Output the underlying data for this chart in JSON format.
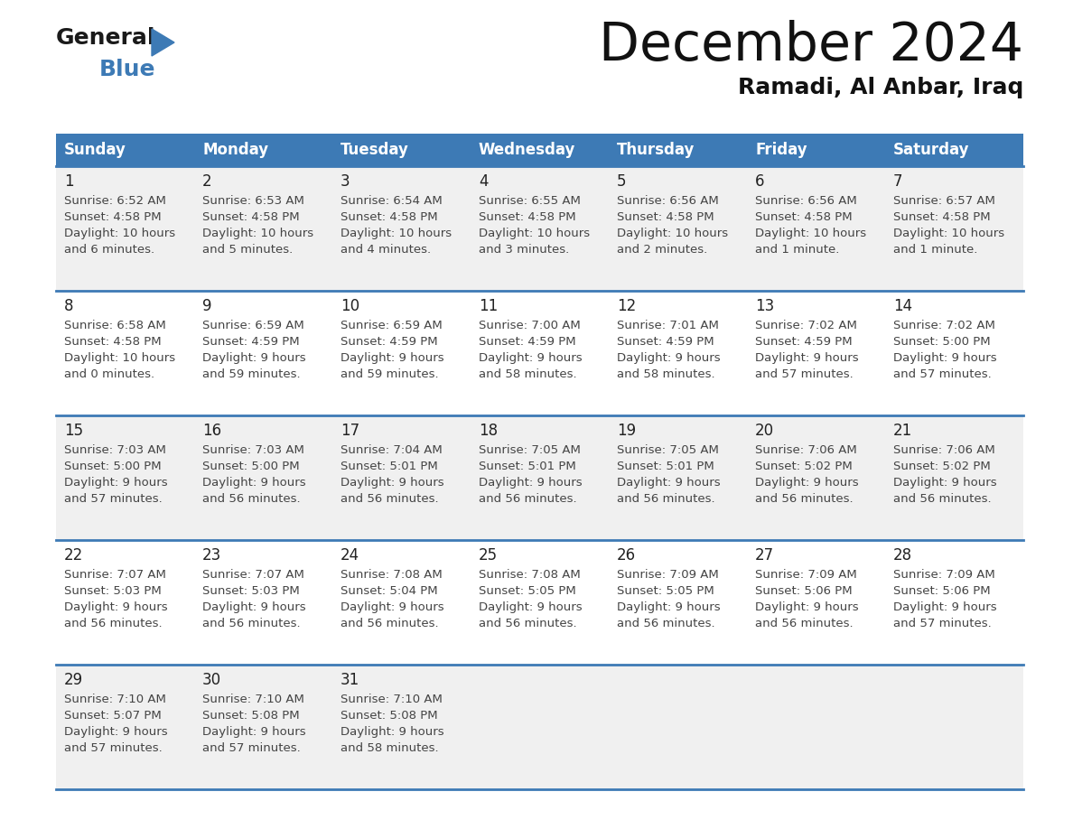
{
  "title": "December 2024",
  "subtitle": "Ramadi, Al Anbar, Iraq",
  "days_of_week": [
    "Sunday",
    "Monday",
    "Tuesday",
    "Wednesday",
    "Thursday",
    "Friday",
    "Saturday"
  ],
  "header_bg": "#3d7ab5",
  "header_text": "#ffffff",
  "row_bg_odd": "#f0f0f0",
  "row_bg_even": "#ffffff",
  "border_color": "#3d7ab5",
  "text_color": "#444444",
  "day_num_color": "#222222",
  "logo_general_color": "#1a1a1a",
  "logo_blue_color": "#3d7ab5",
  "cells": [
    {
      "day": 1,
      "col": 0,
      "row": 0,
      "sunrise": "6:52 AM",
      "sunset": "4:58 PM",
      "daylight": "10 hours and 6 minutes."
    },
    {
      "day": 2,
      "col": 1,
      "row": 0,
      "sunrise": "6:53 AM",
      "sunset": "4:58 PM",
      "daylight": "10 hours and 5 minutes."
    },
    {
      "day": 3,
      "col": 2,
      "row": 0,
      "sunrise": "6:54 AM",
      "sunset": "4:58 PM",
      "daylight": "10 hours and 4 minutes."
    },
    {
      "day": 4,
      "col": 3,
      "row": 0,
      "sunrise": "6:55 AM",
      "sunset": "4:58 PM",
      "daylight": "10 hours and 3 minutes."
    },
    {
      "day": 5,
      "col": 4,
      "row": 0,
      "sunrise": "6:56 AM",
      "sunset": "4:58 PM",
      "daylight": "10 hours and 2 minutes."
    },
    {
      "day": 6,
      "col": 5,
      "row": 0,
      "sunrise": "6:56 AM",
      "sunset": "4:58 PM",
      "daylight": "10 hours and 1 minute."
    },
    {
      "day": 7,
      "col": 6,
      "row": 0,
      "sunrise": "6:57 AM",
      "sunset": "4:58 PM",
      "daylight": "10 hours and 1 minute."
    },
    {
      "day": 8,
      "col": 0,
      "row": 1,
      "sunrise": "6:58 AM",
      "sunset": "4:58 PM",
      "daylight": "10 hours and 0 minutes."
    },
    {
      "day": 9,
      "col": 1,
      "row": 1,
      "sunrise": "6:59 AM",
      "sunset": "4:59 PM",
      "daylight": "9 hours and 59 minutes."
    },
    {
      "day": 10,
      "col": 2,
      "row": 1,
      "sunrise": "6:59 AM",
      "sunset": "4:59 PM",
      "daylight": "9 hours and 59 minutes."
    },
    {
      "day": 11,
      "col": 3,
      "row": 1,
      "sunrise": "7:00 AM",
      "sunset": "4:59 PM",
      "daylight": "9 hours and 58 minutes."
    },
    {
      "day": 12,
      "col": 4,
      "row": 1,
      "sunrise": "7:01 AM",
      "sunset": "4:59 PM",
      "daylight": "9 hours and 58 minutes."
    },
    {
      "day": 13,
      "col": 5,
      "row": 1,
      "sunrise": "7:02 AM",
      "sunset": "4:59 PM",
      "daylight": "9 hours and 57 minutes."
    },
    {
      "day": 14,
      "col": 6,
      "row": 1,
      "sunrise": "7:02 AM",
      "sunset": "5:00 PM",
      "daylight": "9 hours and 57 minutes."
    },
    {
      "day": 15,
      "col": 0,
      "row": 2,
      "sunrise": "7:03 AM",
      "sunset": "5:00 PM",
      "daylight": "9 hours and 57 minutes."
    },
    {
      "day": 16,
      "col": 1,
      "row": 2,
      "sunrise": "7:03 AM",
      "sunset": "5:00 PM",
      "daylight": "9 hours and 56 minutes."
    },
    {
      "day": 17,
      "col": 2,
      "row": 2,
      "sunrise": "7:04 AM",
      "sunset": "5:01 PM",
      "daylight": "9 hours and 56 minutes."
    },
    {
      "day": 18,
      "col": 3,
      "row": 2,
      "sunrise": "7:05 AM",
      "sunset": "5:01 PM",
      "daylight": "9 hours and 56 minutes."
    },
    {
      "day": 19,
      "col": 4,
      "row": 2,
      "sunrise": "7:05 AM",
      "sunset": "5:01 PM",
      "daylight": "9 hours and 56 minutes."
    },
    {
      "day": 20,
      "col": 5,
      "row": 2,
      "sunrise": "7:06 AM",
      "sunset": "5:02 PM",
      "daylight": "9 hours and 56 minutes."
    },
    {
      "day": 21,
      "col": 6,
      "row": 2,
      "sunrise": "7:06 AM",
      "sunset": "5:02 PM",
      "daylight": "9 hours and 56 minutes."
    },
    {
      "day": 22,
      "col": 0,
      "row": 3,
      "sunrise": "7:07 AM",
      "sunset": "5:03 PM",
      "daylight": "9 hours and 56 minutes."
    },
    {
      "day": 23,
      "col": 1,
      "row": 3,
      "sunrise": "7:07 AM",
      "sunset": "5:03 PM",
      "daylight": "9 hours and 56 minutes."
    },
    {
      "day": 24,
      "col": 2,
      "row": 3,
      "sunrise": "7:08 AM",
      "sunset": "5:04 PM",
      "daylight": "9 hours and 56 minutes."
    },
    {
      "day": 25,
      "col": 3,
      "row": 3,
      "sunrise": "7:08 AM",
      "sunset": "5:05 PM",
      "daylight": "9 hours and 56 minutes."
    },
    {
      "day": 26,
      "col": 4,
      "row": 3,
      "sunrise": "7:09 AM",
      "sunset": "5:05 PM",
      "daylight": "9 hours and 56 minutes."
    },
    {
      "day": 27,
      "col": 5,
      "row": 3,
      "sunrise": "7:09 AM",
      "sunset": "5:06 PM",
      "daylight": "9 hours and 56 minutes."
    },
    {
      "day": 28,
      "col": 6,
      "row": 3,
      "sunrise": "7:09 AM",
      "sunset": "5:06 PM",
      "daylight": "9 hours and 57 minutes."
    },
    {
      "day": 29,
      "col": 0,
      "row": 4,
      "sunrise": "7:10 AM",
      "sunset": "5:07 PM",
      "daylight": "9 hours and 57 minutes."
    },
    {
      "day": 30,
      "col": 1,
      "row": 4,
      "sunrise": "7:10 AM",
      "sunset": "5:08 PM",
      "daylight": "9 hours and 57 minutes."
    },
    {
      "day": 31,
      "col": 2,
      "row": 4,
      "sunrise": "7:10 AM",
      "sunset": "5:08 PM",
      "daylight": "9 hours and 58 minutes."
    }
  ]
}
